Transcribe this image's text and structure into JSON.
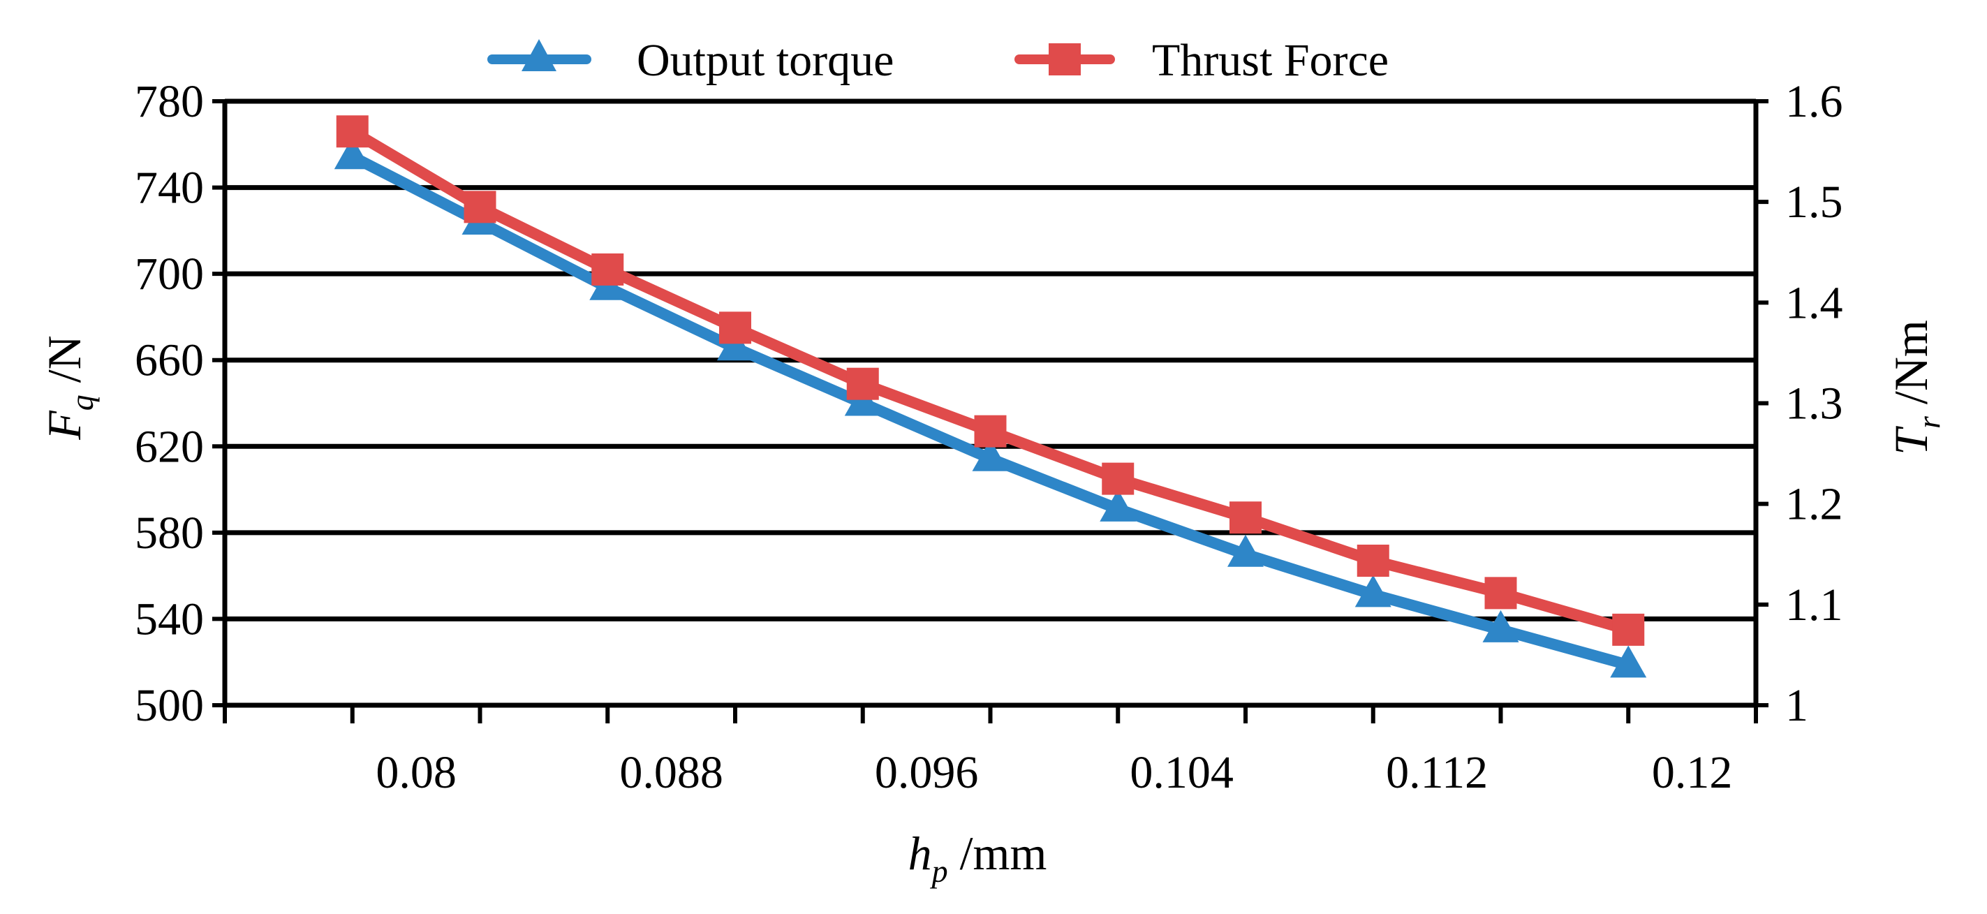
{
  "chart_data": {
    "type": "line",
    "title": "",
    "x": [
      0.078,
      0.082,
      0.086,
      0.09,
      0.094,
      0.098,
      0.102,
      0.106,
      0.11,
      0.114,
      0.118
    ],
    "xlim": [
      0.074,
      0.122
    ],
    "xticks": [
      "0.08",
      "0.088",
      "0.096",
      "0.104",
      "0.112",
      "0.12"
    ],
    "xlabel": {
      "main": "h",
      "sub": "p",
      "unit": " /mm"
    },
    "ylabel_left": {
      "main": "F",
      "sub": "q",
      "unit": " /N"
    },
    "ylabel_right": {
      "main": "T",
      "sub": "r",
      "unit": " /Nm"
    },
    "ylim_left": [
      500,
      780
    ],
    "ylim_right": [
      1,
      1.6
    ],
    "yticks_left": [
      "500",
      "540",
      "580",
      "620",
      "660",
      "700",
      "740",
      "780"
    ],
    "yticks_right": [
      "1",
      "1.1",
      "1.2",
      "1.3",
      "1.4",
      "1.5",
      "1.6"
    ],
    "grid": "horizontal",
    "legend_position": "top-center",
    "series": [
      {
        "name": "Output torque",
        "axis": "right",
        "marker": "triangle",
        "color": "#2e86c8",
        "values": [
          1.545,
          1.48,
          1.415,
          1.355,
          1.3,
          1.245,
          1.195,
          1.15,
          1.11,
          1.075,
          1.04
        ]
      },
      {
        "name": "Thrust Force",
        "axis": "left",
        "marker": "square",
        "color": "#e04b4b",
        "values": [
          766,
          731,
          702,
          675,
          649,
          627,
          605,
          587,
          567,
          552,
          535
        ]
      }
    ]
  }
}
